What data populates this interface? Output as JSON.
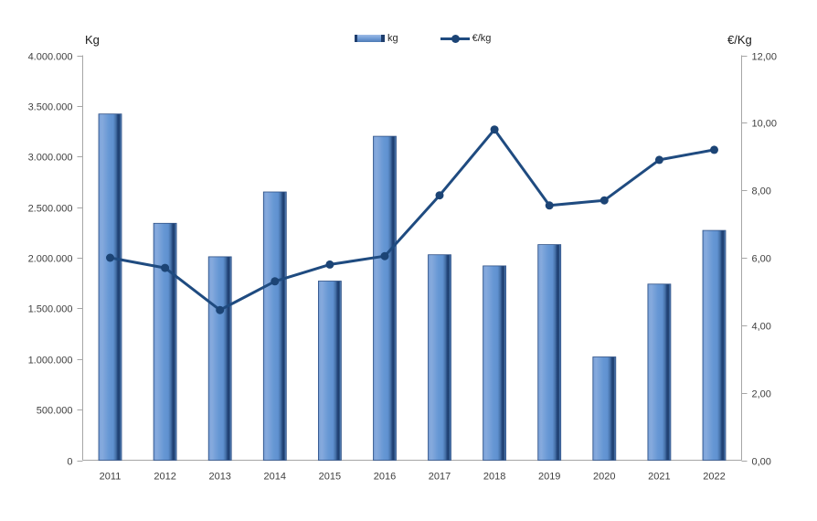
{
  "legend": [
    {
      "label": "kg",
      "swatch": "bar-swatch"
    },
    {
      "label": "€/kg",
      "swatch": "line-swatch"
    }
  ],
  "chart_data": {
    "type": "combo",
    "categories": [
      "2011",
      "2012",
      "2013",
      "2014",
      "2015",
      "2016",
      "2017",
      "2018",
      "2019",
      "2020",
      "2021",
      "2022"
    ],
    "series": [
      {
        "name": "kg",
        "type": "bar",
        "axis": "left",
        "color": "#6695D3",
        "values": [
          3420000,
          2340000,
          2010000,
          2650000,
          1770000,
          3200000,
          2030000,
          1920000,
          2130000,
          1020000,
          1740000,
          2270000
        ]
      },
      {
        "name": "€/kg",
        "type": "line",
        "axis": "right",
        "color": "#1F4B80",
        "values": [
          6.0,
          5.7,
          4.45,
          5.3,
          5.8,
          6.05,
          7.85,
          9.8,
          7.55,
          7.7,
          8.9,
          9.2
        ]
      }
    ],
    "left_axis": {
      "title": "Kg",
      "min": 0,
      "max": 4000000,
      "step": 500000,
      "tick_labels": [
        "4.000.000",
        "3.500.000",
        "3.000.000",
        "2.500.000",
        "2.000.000",
        "1.500.000",
        "1.000.000",
        "500.000",
        "0"
      ]
    },
    "right_axis": {
      "title": "€/Kg",
      "min": 0,
      "max": 12,
      "step": 2,
      "tick_labels": [
        "12,00",
        "10,00",
        "8,00",
        "6,00",
        "4,00",
        "2,00",
        "0,00"
      ]
    },
    "legend_position": "top-center",
    "grid": false,
    "title": ""
  },
  "colors": {
    "bar_fill": "#6695D3",
    "bar_highlight": "#86AADD",
    "bar_shadow": "#1E3E6D",
    "bar_outline": "#2F5186",
    "line": "#1F4B80",
    "marker": "#1C4475",
    "axis": "#A6A6A6",
    "tick_text": "#3F3F3F",
    "background": "#FFFFFF"
  }
}
